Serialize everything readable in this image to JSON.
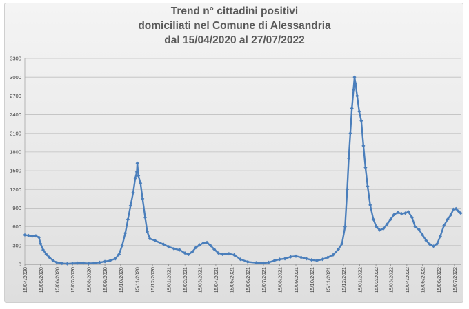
{
  "chart_data": {
    "type": "line",
    "title": [
      "Trend n° cittadini positivi",
      "domiciliati nel Comune di Alessandria",
      "dal 15/04/2020 al 27/07/2022"
    ],
    "xlabel": "",
    "ylabel": "",
    "ylim": [
      0,
      3300
    ],
    "y_ticks": [
      0,
      300,
      600,
      900,
      1200,
      1500,
      1800,
      2100,
      2400,
      2700,
      3000,
      3300
    ],
    "x_ticks": [
      "15/04/2020",
      "15/05/2020",
      "15/06/2020",
      "15/07/2020",
      "15/08/2020",
      "15/09/2020",
      "15/10/2020",
      "15/11/2020",
      "15/12/2020",
      "15/01/2021",
      "15/02/2021",
      "15/03/2021",
      "15/04/2021",
      "15/05/2021",
      "15/06/2021",
      "15/07/2021",
      "15/08/2021",
      "15/09/2021",
      "15/10/2021",
      "15/11/2021",
      "15/12/2021",
      "15/01/2022",
      "15/02/2022",
      "15/03/2022",
      "15/04/2022",
      "15/05/2022",
      "15/06/2022",
      "15/07/2022"
    ],
    "grid": true,
    "legend": "none",
    "color": "#4a7ebb",
    "x_domain": [
      "15/04/2020",
      "27/07/2022"
    ],
    "points": [
      [
        "15/04/2020",
        470
      ],
      [
        "22/04/2020",
        460
      ],
      [
        "29/04/2020",
        450
      ],
      [
        "06/05/2020",
        455
      ],
      [
        "12/05/2020",
        430
      ],
      [
        "15/05/2020",
        330
      ],
      [
        "20/05/2020",
        230
      ],
      [
        "26/05/2020",
        160
      ],
      [
        "01/06/2020",
        110
      ],
      [
        "08/06/2020",
        60
      ],
      [
        "15/06/2020",
        30
      ],
      [
        "25/06/2020",
        15
      ],
      [
        "05/07/2020",
        10
      ],
      [
        "15/07/2020",
        15
      ],
      [
        "25/07/2020",
        20
      ],
      [
        "05/08/2020",
        20
      ],
      [
        "15/08/2020",
        15
      ],
      [
        "25/08/2020",
        20
      ],
      [
        "05/09/2020",
        30
      ],
      [
        "15/09/2020",
        45
      ],
      [
        "25/09/2020",
        60
      ],
      [
        "05/10/2020",
        90
      ],
      [
        "12/10/2020",
        160
      ],
      [
        "18/10/2020",
        300
      ],
      [
        "24/10/2020",
        500
      ],
      [
        "29/10/2020",
        720
      ],
      [
        "03/11/2020",
        940
      ],
      [
        "08/11/2020",
        1150
      ],
      [
        "12/11/2020",
        1380
      ],
      [
        "15/11/2020",
        1480
      ],
      [
        "16/11/2020",
        1620
      ],
      [
        "18/11/2020",
        1420
      ],
      [
        "22/11/2020",
        1300
      ],
      [
        "26/11/2020",
        1050
      ],
      [
        "01/12/2020",
        750
      ],
      [
        "05/12/2020",
        520
      ],
      [
        "10/12/2020",
        410
      ],
      [
        "20/12/2020",
        380
      ],
      [
        "05/01/2021",
        320
      ],
      [
        "15/01/2021",
        280
      ],
      [
        "25/01/2021",
        250
      ],
      [
        "05/02/2021",
        230
      ],
      [
        "15/02/2021",
        180
      ],
      [
        "22/02/2021",
        160
      ],
      [
        "01/03/2021",
        200
      ],
      [
        "08/03/2021",
        270
      ],
      [
        "15/03/2021",
        310
      ],
      [
        "22/03/2021",
        340
      ],
      [
        "29/03/2021",
        350
      ],
      [
        "05/04/2021",
        300
      ],
      [
        "12/04/2021",
        240
      ],
      [
        "20/04/2021",
        180
      ],
      [
        "28/04/2021",
        160
      ],
      [
        "10/05/2021",
        170
      ],
      [
        "20/05/2021",
        150
      ],
      [
        "01/06/2021",
        80
      ],
      [
        "15/06/2021",
        40
      ],
      [
        "01/07/2021",
        25
      ],
      [
        "15/07/2021",
        20
      ],
      [
        "25/07/2021",
        30
      ],
      [
        "05/08/2021",
        60
      ],
      [
        "15/08/2021",
        80
      ],
      [
        "25/08/2021",
        90
      ],
      [
        "05/09/2021",
        120
      ],
      [
        "15/09/2021",
        130
      ],
      [
        "25/09/2021",
        110
      ],
      [
        "05/10/2021",
        90
      ],
      [
        "15/10/2021",
        70
      ],
      [
        "25/10/2021",
        60
      ],
      [
        "05/11/2021",
        80
      ],
      [
        "15/11/2021",
        110
      ],
      [
        "25/11/2021",
        150
      ],
      [
        "05/12/2021",
        240
      ],
      [
        "12/12/2021",
        330
      ],
      [
        "18/12/2021",
        600
      ],
      [
        "22/12/2021",
        1200
      ],
      [
        "25/12/2021",
        1700
      ],
      [
        "28/12/2021",
        2100
      ],
      [
        "31/12/2021",
        2500
      ],
      [
        "03/01/2022",
        2800
      ],
      [
        "05/01/2022",
        3000
      ],
      [
        "07/01/2022",
        2900
      ],
      [
        "10/01/2022",
        2700
      ],
      [
        "14/01/2022",
        2450
      ],
      [
        "18/01/2022",
        2300
      ],
      [
        "22/01/2022",
        1900
      ],
      [
        "26/01/2022",
        1550
      ],
      [
        "30/01/2022",
        1250
      ],
      [
        "04/02/2022",
        950
      ],
      [
        "10/02/2022",
        720
      ],
      [
        "16/02/2022",
        600
      ],
      [
        "22/02/2022",
        550
      ],
      [
        "01/03/2022",
        570
      ],
      [
        "08/03/2022",
        640
      ],
      [
        "15/03/2022",
        720
      ],
      [
        "22/03/2022",
        800
      ],
      [
        "29/03/2022",
        830
      ],
      [
        "05/04/2022",
        810
      ],
      [
        "12/04/2022",
        820
      ],
      [
        "18/04/2022",
        840
      ],
      [
        "25/04/2022",
        750
      ],
      [
        "01/05/2022",
        600
      ],
      [
        "08/05/2022",
        560
      ],
      [
        "15/05/2022",
        470
      ],
      [
        "22/05/2022",
        380
      ],
      [
        "29/05/2022",
        320
      ],
      [
        "05/06/2022",
        290
      ],
      [
        "12/06/2022",
        330
      ],
      [
        "18/06/2022",
        450
      ],
      [
        "25/06/2022",
        620
      ],
      [
        "02/07/2022",
        720
      ],
      [
        "08/07/2022",
        790
      ],
      [
        "13/07/2022",
        880
      ],
      [
        "18/07/2022",
        890
      ],
      [
        "23/07/2022",
        850
      ],
      [
        "27/07/2022",
        820
      ]
    ]
  }
}
